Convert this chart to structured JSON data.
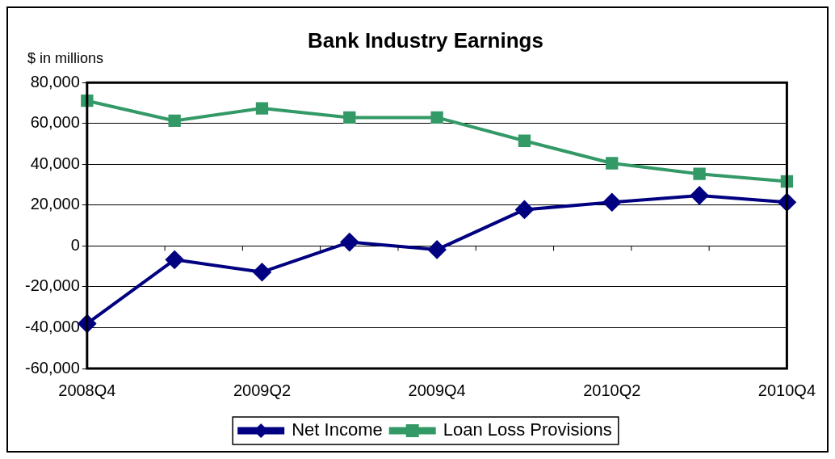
{
  "chart_data": {
    "type": "line",
    "title": "Bank Industry Earnings",
    "ylabel": "$ in millions",
    "categories": [
      "2008Q4",
      null,
      "2009Q2",
      null,
      "2009Q4",
      null,
      "2010Q2",
      null,
      "2010Q4"
    ],
    "series": [
      {
        "name": "Net Income",
        "color": "#000080",
        "marker": "diamond",
        "values": [
          -38000,
          -6700,
          -12800,
          1900,
          -1800,
          17800,
          21400,
          24700,
          21400
        ]
      },
      {
        "name": "Loan Loss Provisions",
        "color": "#339966",
        "marker": "square",
        "values": [
          71100,
          61300,
          67400,
          62900,
          62900,
          51500,
          40500,
          35300,
          31600
        ]
      }
    ],
    "ylim": [
      -60000,
      80000
    ],
    "yticks": [
      {
        "value": -60000,
        "label": "-60,000"
      },
      {
        "value": -40000,
        "label": "-40,000"
      },
      {
        "value": -20000,
        "label": "-20,000"
      },
      {
        "value": 0,
        "label": "0"
      },
      {
        "value": 20000,
        "label": "20,000"
      },
      {
        "value": 40000,
        "label": "40,000"
      },
      {
        "value": 60000,
        "label": "60,000"
      },
      {
        "value": 80000,
        "label": "80,000"
      }
    ],
    "grid": "y",
    "legend": "bottom",
    "line_style": "solid"
  }
}
